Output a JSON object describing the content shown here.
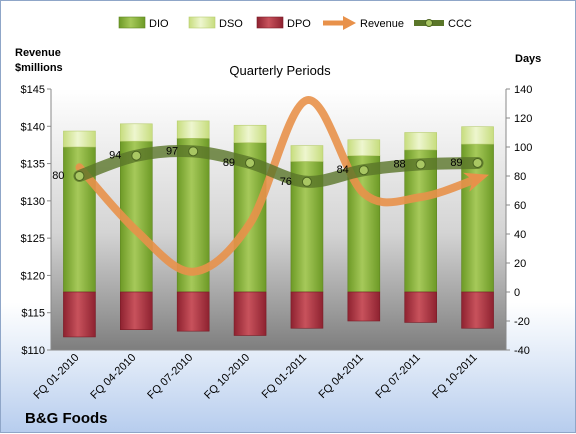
{
  "brand": "B&G Foods",
  "chart_data": {
    "type": "bar",
    "title": "Quarterly Periods",
    "ylabel_left": "Revenue $millions",
    "ylabel_right": "Days",
    "categories": [
      "FQ 01-2010",
      "FQ 04-2010",
      "FQ 07-2010",
      "FQ 10-2010",
      "FQ 01-2011",
      "FQ 04-2011",
      "FQ 07-2011",
      "FQ 10-2011"
    ],
    "ylim_left": [
      110,
      145
    ],
    "ylim_right": [
      -40,
      140
    ],
    "left_ticks": [
      110,
      115,
      120,
      125,
      130,
      135,
      140,
      145
    ],
    "left_tick_labels": [
      "$110",
      "$115",
      "$120",
      "$125",
      "$130",
      "$135",
      "$140",
      "$145"
    ],
    "right_ticks": [
      -40,
      -20,
      0,
      20,
      40,
      60,
      80,
      100,
      120,
      140
    ],
    "right_tick_labels": [
      "-40",
      "-20",
      "0",
      "20",
      "40",
      "60",
      "80",
      "100",
      "120",
      "140"
    ],
    "legend_position": "top",
    "series": [
      {
        "name": "DIO",
        "type": "stacked-bar",
        "axis": "right",
        "color": "#8fb13e",
        "values": [
          100,
          104,
          106,
          103,
          90,
          94,
          98,
          102
        ]
      },
      {
        "name": "DSO",
        "type": "stacked-bar",
        "axis": "right",
        "color": "#ddeaa8",
        "values": [
          11,
          12,
          12,
          12,
          11,
          11,
          12,
          12
        ]
      },
      {
        "name": "DPO",
        "type": "bar-negative",
        "axis": "right",
        "color": "#a8323e",
        "values": [
          -31,
          -26,
          -27,
          -30,
          -25,
          -20,
          -21,
          -25
        ]
      },
      {
        "name": "Revenue",
        "type": "line",
        "axis": "left",
        "color": "#e8914a",
        "values": [
          134.5,
          126,
          120.5,
          127,
          143.5,
          131,
          130.5,
          133
        ]
      },
      {
        "name": "CCC",
        "type": "line",
        "axis": "right",
        "color": "#5e7a2e",
        "values": [
          80,
          94,
          97,
          89,
          76,
          84,
          88,
          89
        ],
        "labels": [
          "80",
          "94",
          "97",
          "89",
          "76",
          "84",
          "88",
          "89"
        ]
      }
    ]
  }
}
